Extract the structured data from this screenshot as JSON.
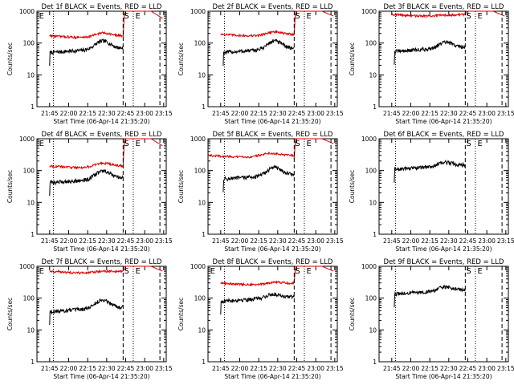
{
  "chart_data": [
    {
      "type": "line",
      "title": "Det 1f BLACK = Events, RED = LLD",
      "xlabel": "Start Time (06-Apr-14 21:35:20)",
      "ylabel": "Counts/sec",
      "yscale": "log",
      "ylim": [
        1,
        1000
      ],
      "x_ticks": [
        "21:45",
        "22:00",
        "22:15",
        "22:30",
        "22:45",
        "23:00",
        "23:15"
      ],
      "y_ticks": [
        "1",
        "10",
        "100",
        "1000"
      ],
      "marker_labels": [
        "E",
        "S",
        "E"
      ],
      "series": [
        {
          "color": "#000000",
          "kind": "events",
          "start": "21:45",
          "end": "22:43",
          "level": 60,
          "bump": 1.8
        },
        {
          "color": "#e00000",
          "kind": "lld",
          "start": "21:45",
          "end": "22:43",
          "level": 170,
          "bump": 1.35,
          "after": [
            {
              "x": "22:43",
              "y": 150
            },
            {
              "x": "22:44",
              "y": 1000
            },
            {
              "x": "23:05",
              "y": 1000
            },
            {
              "x": "23:14",
              "y": 600
            }
          ]
        }
      ]
    },
    {
      "type": "line",
      "title": "Det 2f BLACK = Events, RED = LLD",
      "xlabel": "Start Time (06-Apr-14 21:35:20)",
      "ylabel": "Counts/sec",
      "yscale": "log",
      "ylim": [
        1,
        1000
      ],
      "x_ticks": [
        "21:45",
        "22:00",
        "22:15",
        "22:30",
        "22:45",
        "23:00",
        "23:15"
      ],
      "y_ticks": [
        "1",
        "10",
        "100",
        "1000"
      ],
      "marker_labels": [
        "S",
        "E"
      ],
      "series": [
        {
          "color": "#000000",
          "kind": "events",
          "start": "21:47",
          "end": "22:43",
          "level": 60,
          "bump": 1.8
        },
        {
          "color": "#e00000",
          "kind": "lld",
          "start": "21:45",
          "end": "22:43",
          "level": 190,
          "bump": 1.3,
          "after": [
            {
              "x": "22:43",
              "y": 180
            },
            {
              "x": "22:44",
              "y": 1000
            },
            {
              "x": "23:05",
              "y": 1000
            },
            {
              "x": "23:14",
              "y": 700
            }
          ]
        }
      ]
    },
    {
      "type": "line",
      "title": "Det 3f BLACK = Events, RED = LLD",
      "xlabel": "Start Time (06-Apr-14 21:35:20)",
      "ylabel": "Counts/sec",
      "yscale": "log",
      "ylim": [
        1,
        1000
      ],
      "x_ticks": [
        "21:45",
        "22:00",
        "22:15",
        "22:30",
        "22:45",
        "23:00",
        "23:15"
      ],
      "y_ticks": [
        "1",
        "10",
        "100",
        "1000"
      ],
      "marker_labels": [
        "S",
        "E"
      ],
      "series": [
        {
          "color": "#000000",
          "kind": "events",
          "start": "21:47",
          "end": "22:43",
          "level": 65,
          "bump": 1.5
        },
        {
          "color": "#e00000",
          "kind": "lld",
          "start": "21:45",
          "end": "22:43",
          "level": 800,
          "bump": 1.05,
          "after": [
            {
              "x": "22:43",
              "y": 800
            },
            {
              "x": "22:44",
              "y": 1000
            },
            {
              "x": "23:05",
              "y": 1000
            },
            {
              "x": "23:14",
              "y": 700
            }
          ]
        }
      ]
    },
    {
      "type": "line",
      "title": "Det 4f BLACK = Events, RED = LLD",
      "xlabel": "Start Time (06-Apr-14 21:35:20)",
      "ylabel": "Counts/sec",
      "yscale": "log",
      "ylim": [
        1,
        1000
      ],
      "x_ticks": [
        "21:45",
        "22:00",
        "22:15",
        "22:30",
        "22:45",
        "23:00",
        "23:15"
      ],
      "y_ticks": [
        "1",
        "10",
        "100",
        "1000"
      ],
      "marker_labels": [
        "E",
        "S",
        "E"
      ],
      "series": [
        {
          "color": "#000000",
          "kind": "events",
          "start": "21:45",
          "end": "22:43",
          "level": 50,
          "bump": 1.8
        },
        {
          "color": "#e00000",
          "kind": "lld",
          "start": "21:45",
          "end": "22:43",
          "level": 140,
          "bump": 1.35,
          "after": [
            {
              "x": "22:43",
              "y": 140
            },
            {
              "x": "22:44",
              "y": 1000
            },
            {
              "x": "23:05",
              "y": 1000
            },
            {
              "x": "23:14",
              "y": 600
            }
          ]
        }
      ]
    },
    {
      "type": "line",
      "title": "Det 5f BLACK = Events, RED = LLD",
      "xlabel": "Start Time (06-Apr-14 21:35:20)",
      "ylabel": "Counts/sec",
      "yscale": "log",
      "ylim": [
        1,
        1000
      ],
      "x_ticks": [
        "21:45",
        "22:00",
        "22:15",
        "22:30",
        "22:45",
        "23:00",
        "23:15"
      ],
      "y_ticks": [
        "1",
        "10",
        "100",
        "1000"
      ],
      "marker_labels": [
        "S",
        "E"
      ],
      "series": [
        {
          "color": "#000000",
          "kind": "events",
          "start": "21:47",
          "end": "22:43",
          "level": 65,
          "bump": 1.8
        },
        {
          "color": "#e00000",
          "kind": "lld",
          "start": "21:35",
          "end": "22:43",
          "level": 300,
          "bump": 1.3,
          "after": [
            {
              "x": "22:43",
              "y": 230
            },
            {
              "x": "22:44",
              "y": 1000
            },
            {
              "x": "23:05",
              "y": 1000
            },
            {
              "x": "23:14",
              "y": 700
            }
          ]
        }
      ]
    },
    {
      "type": "line",
      "title": "Det 6f BLACK = Events, RED = LLD",
      "xlabel": "Start Time (06-Apr-14 21:35:20)",
      "ylabel": "Counts/sec",
      "yscale": "log",
      "ylim": [
        1,
        1000
      ],
      "x_ticks": [
        "21:45",
        "22:00",
        "22:15",
        "22:30",
        "22:45",
        "23:00",
        "23:15"
      ],
      "y_ticks": [
        "1",
        "10",
        "100",
        "1000"
      ],
      "marker_labels": [
        "S",
        "E"
      ],
      "series": [
        {
          "color": "#000000",
          "kind": "events",
          "start": "21:47",
          "end": "22:43",
          "level": 130,
          "bump": 1.3
        }
      ]
    },
    {
      "type": "line",
      "title": "Det 7f BLACK = Events, RED = LLD",
      "xlabel": "Start Time (06-Apr-14 21:35:20)",
      "ylabel": "Counts/sec",
      "yscale": "log",
      "ylim": [
        1,
        1000
      ],
      "x_ticks": [
        "21:45",
        "22:00",
        "22:15",
        "22:30",
        "22:45",
        "23:00",
        "23:15"
      ],
      "y_ticks": [
        "1",
        "10",
        "100",
        "1000"
      ],
      "marker_labels": [
        "E",
        "S",
        "E"
      ],
      "series": [
        {
          "color": "#000000",
          "kind": "events",
          "start": "21:45",
          "end": "22:43",
          "level": 45,
          "bump": 1.8
        },
        {
          "color": "#e00000",
          "kind": "lld",
          "start": "21:45",
          "end": "22:43",
          "level": 700,
          "bump": 1.1,
          "after": [
            {
              "x": "22:43",
              "y": 700
            },
            {
              "x": "22:44",
              "y": 1000
            },
            {
              "x": "23:05",
              "y": 1000
            },
            {
              "x": "23:14",
              "y": 700
            }
          ]
        }
      ]
    },
    {
      "type": "line",
      "title": "Det 8f BLACK = Events, RED = LLD",
      "xlabel": "Start Time (06-Apr-14 21:35:20)",
      "ylabel": "Counts/sec",
      "yscale": "log",
      "ylim": [
        1,
        1000
      ],
      "x_ticks": [
        "21:45",
        "22:00",
        "22:15",
        "22:30",
        "22:45",
        "23:00",
        "23:15"
      ],
      "y_ticks": [
        "1",
        "10",
        "100",
        "1000"
      ],
      "marker_labels": [
        "E",
        "S",
        "E"
      ],
      "series": [
        {
          "color": "#000000",
          "kind": "events",
          "start": "21:45",
          "end": "22:43",
          "level": 95,
          "bump": 1.3
        },
        {
          "color": "#e00000",
          "kind": "lld",
          "start": "21:45",
          "end": "22:43",
          "level": 300,
          "bump": 1.15,
          "after": [
            {
              "x": "22:43",
              "y": 300
            },
            {
              "x": "22:44",
              "y": 1000
            },
            {
              "x": "23:05",
              "y": 1000
            },
            {
              "x": "23:14",
              "y": 700
            }
          ]
        }
      ]
    },
    {
      "type": "line",
      "title": "Det 9f BLACK = Events, RED = LLD",
      "xlabel": "Start Time (06-Apr-14 21:35:20)",
      "ylabel": "Counts/sec",
      "yscale": "log",
      "ylim": [
        1,
        1000
      ],
      "x_ticks": [
        "21:45",
        "22:00",
        "22:15",
        "22:30",
        "22:45",
        "23:00",
        "23:15"
      ],
      "y_ticks": [
        "1",
        "10",
        "100",
        "1000"
      ],
      "marker_labels": [
        "S",
        "E"
      ],
      "series": [
        {
          "color": "#000000",
          "kind": "events",
          "start": "21:47",
          "end": "22:43",
          "level": 160,
          "bump": 1.3
        }
      ]
    }
  ]
}
